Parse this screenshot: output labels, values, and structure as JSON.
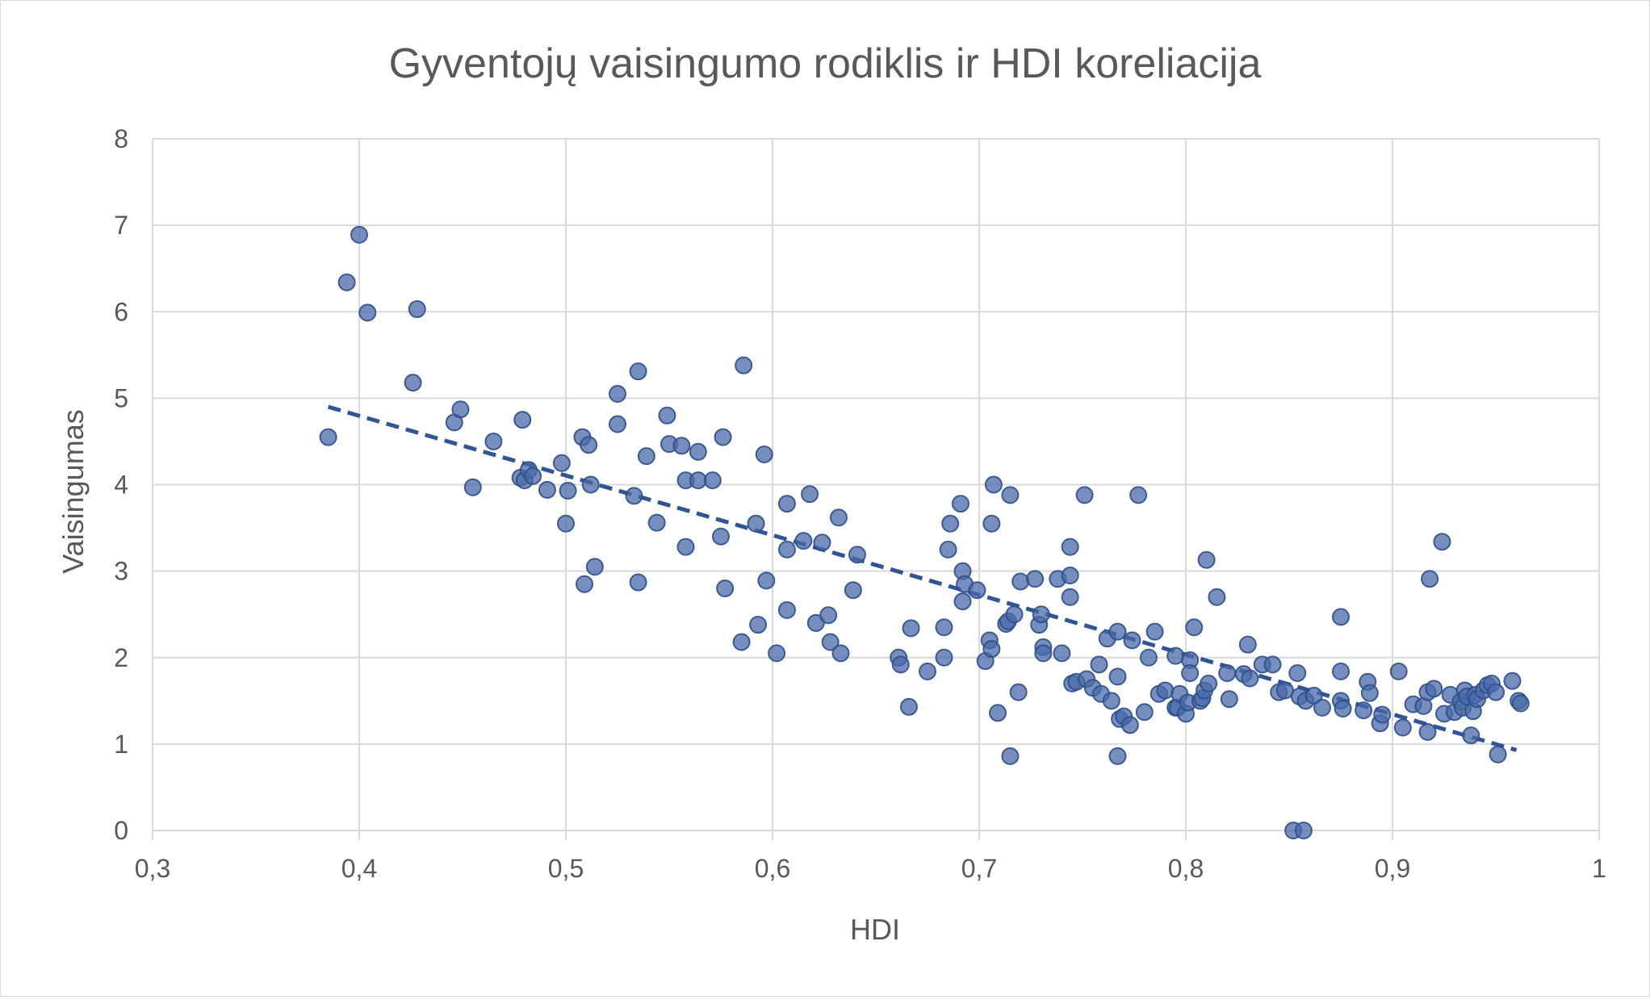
{
  "chart_data": {
    "type": "scatter",
    "title": "Gyventojų vaisingumo rodiklis ir HDI koreliacija",
    "xlabel": "HDI",
    "ylabel": "Vaisingumas",
    "xlim": [
      0.3,
      1.0
    ],
    "ylim": [
      0,
      8
    ],
    "x_ticks": [
      "0,3",
      "0,4",
      "0,5",
      "0,6",
      "0,7",
      "0,8",
      "0,9",
      "1"
    ],
    "y_ticks": [
      "0",
      "1",
      "2",
      "3",
      "4",
      "5",
      "6",
      "7",
      "8"
    ],
    "grid": true,
    "legend": "none",
    "marker_color": "#4a6aa8",
    "trendline": {
      "style": "dashed",
      "color": "#2f5597",
      "from": [
        0.385,
        4.9
      ],
      "to": [
        0.96,
        0.93
      ]
    },
    "points": [
      [
        0.385,
        4.55
      ],
      [
        0.394,
        6.34
      ],
      [
        0.4,
        6.89
      ],
      [
        0.404,
        5.99
      ],
      [
        0.426,
        5.18
      ],
      [
        0.428,
        6.03
      ],
      [
        0.446,
        4.72
      ],
      [
        0.449,
        4.87
      ],
      [
        0.455,
        3.97
      ],
      [
        0.465,
        4.5
      ],
      [
        0.478,
        4.08
      ],
      [
        0.479,
        4.75
      ],
      [
        0.48,
        4.05
      ],
      [
        0.482,
        4.17
      ],
      [
        0.484,
        4.1
      ],
      [
        0.491,
        3.94
      ],
      [
        0.498,
        4.25
      ],
      [
        0.5,
        3.55
      ],
      [
        0.501,
        3.93
      ],
      [
        0.508,
        4.55
      ],
      [
        0.509,
        2.85
      ],
      [
        0.511,
        4.46
      ],
      [
        0.512,
        4.0
      ],
      [
        0.514,
        3.05
      ],
      [
        0.525,
        5.05
      ],
      [
        0.525,
        4.7
      ],
      [
        0.533,
        3.87
      ],
      [
        0.535,
        5.31
      ],
      [
        0.535,
        2.87
      ],
      [
        0.539,
        4.33
      ],
      [
        0.544,
        3.56
      ],
      [
        0.549,
        4.8
      ],
      [
        0.55,
        4.47
      ],
      [
        0.556,
        4.45
      ],
      [
        0.558,
        4.05
      ],
      [
        0.558,
        3.28
      ],
      [
        0.564,
        4.38
      ],
      [
        0.564,
        4.05
      ],
      [
        0.571,
        4.05
      ],
      [
        0.575,
        3.4
      ],
      [
        0.576,
        4.55
      ],
      [
        0.577,
        2.8
      ],
      [
        0.585,
        2.18
      ],
      [
        0.586,
        5.38
      ],
      [
        0.592,
        3.55
      ],
      [
        0.593,
        2.38
      ],
      [
        0.596,
        4.35
      ],
      [
        0.597,
        2.89
      ],
      [
        0.602,
        2.05
      ],
      [
        0.607,
        3.78
      ],
      [
        0.607,
        3.25
      ],
      [
        0.607,
        2.55
      ],
      [
        0.615,
        3.35
      ],
      [
        0.618,
        3.89
      ],
      [
        0.621,
        2.4
      ],
      [
        0.624,
        3.33
      ],
      [
        0.627,
        2.49
      ],
      [
        0.628,
        2.18
      ],
      [
        0.632,
        3.62
      ],
      [
        0.633,
        2.05
      ],
      [
        0.639,
        2.78
      ],
      [
        0.641,
        3.19
      ],
      [
        0.661,
        2.0
      ],
      [
        0.662,
        1.92
      ],
      [
        0.666,
        1.43
      ],
      [
        0.667,
        2.34
      ],
      [
        0.675,
        1.84
      ],
      [
        0.683,
        2.35
      ],
      [
        0.683,
        2.0
      ],
      [
        0.685,
        3.25
      ],
      [
        0.686,
        3.55
      ],
      [
        0.691,
        3.78
      ],
      [
        0.692,
        3.0
      ],
      [
        0.692,
        2.65
      ],
      [
        0.693,
        2.85
      ],
      [
        0.699,
        2.78
      ],
      [
        0.703,
        1.96
      ],
      [
        0.705,
        2.2
      ],
      [
        0.706,
        3.55
      ],
      [
        0.706,
        2.1
      ],
      [
        0.707,
        4.0
      ],
      [
        0.709,
        1.36
      ],
      [
        0.713,
        2.39
      ],
      [
        0.714,
        2.42
      ],
      [
        0.715,
        3.88
      ],
      [
        0.715,
        0.86
      ],
      [
        0.717,
        2.5
      ],
      [
        0.719,
        1.6
      ],
      [
        0.72,
        2.88
      ],
      [
        0.727,
        2.91
      ],
      [
        0.729,
        2.38
      ],
      [
        0.73,
        2.5
      ],
      [
        0.731,
        2.12
      ],
      [
        0.731,
        2.05
      ],
      [
        0.738,
        2.91
      ],
      [
        0.74,
        2.05
      ],
      [
        0.744,
        2.95
      ],
      [
        0.744,
        3.28
      ],
      [
        0.744,
        2.7
      ],
      [
        0.745,
        1.7
      ],
      [
        0.747,
        1.72
      ],
      [
        0.751,
        3.88
      ],
      [
        0.752,
        1.75
      ],
      [
        0.755,
        1.65
      ],
      [
        0.758,
        1.92
      ],
      [
        0.759,
        1.58
      ],
      [
        0.762,
        2.22
      ],
      [
        0.764,
        1.5
      ],
      [
        0.767,
        2.3
      ],
      [
        0.767,
        1.78
      ],
      [
        0.767,
        0.86
      ],
      [
        0.768,
        1.29
      ],
      [
        0.77,
        1.32
      ],
      [
        0.773,
        1.22
      ],
      [
        0.774,
        2.2
      ],
      [
        0.777,
        3.88
      ],
      [
        0.78,
        1.37
      ],
      [
        0.782,
        2.0
      ],
      [
        0.785,
        2.3
      ],
      [
        0.787,
        1.58
      ],
      [
        0.79,
        1.62
      ],
      [
        0.795,
        2.02
      ],
      [
        0.795,
        1.42
      ],
      [
        0.796,
        1.42
      ],
      [
        0.797,
        1.58
      ],
      [
        0.8,
        1.35
      ],
      [
        0.801,
        1.48
      ],
      [
        0.802,
        1.97
      ],
      [
        0.802,
        1.82
      ],
      [
        0.804,
        2.35
      ],
      [
        0.807,
        1.5
      ],
      [
        0.808,
        1.53
      ],
      [
        0.809,
        1.62
      ],
      [
        0.81,
        3.13
      ],
      [
        0.811,
        1.7
      ],
      [
        0.815,
        2.7
      ],
      [
        0.82,
        1.82
      ],
      [
        0.821,
        1.52
      ],
      [
        0.828,
        1.81
      ],
      [
        0.83,
        2.15
      ],
      [
        0.831,
        1.76
      ],
      [
        0.837,
        1.92
      ],
      [
        0.842,
        1.92
      ],
      [
        0.845,
        1.6
      ],
      [
        0.848,
        1.62
      ],
      [
        0.852,
        0.0
      ],
      [
        0.854,
        1.82
      ],
      [
        0.855,
        1.55
      ],
      [
        0.857,
        0.0
      ],
      [
        0.858,
        1.5
      ],
      [
        0.862,
        1.56
      ],
      [
        0.866,
        1.42
      ],
      [
        0.875,
        2.47
      ],
      [
        0.875,
        1.84
      ],
      [
        0.875,
        1.5
      ],
      [
        0.876,
        1.41
      ],
      [
        0.886,
        1.39
      ],
      [
        0.888,
        1.72
      ],
      [
        0.889,
        1.59
      ],
      [
        0.894,
        1.24
      ],
      [
        0.895,
        1.34
      ],
      [
        0.903,
        1.84
      ],
      [
        0.905,
        1.19
      ],
      [
        0.91,
        1.46
      ],
      [
        0.915,
        1.44
      ],
      [
        0.917,
        1.14
      ],
      [
        0.917,
        1.6
      ],
      [
        0.918,
        2.91
      ],
      [
        0.92,
        1.64
      ],
      [
        0.924,
        3.34
      ],
      [
        0.925,
        1.35
      ],
      [
        0.928,
        1.57
      ],
      [
        0.93,
        1.37
      ],
      [
        0.933,
        1.49
      ],
      [
        0.934,
        1.42
      ],
      [
        0.935,
        1.62
      ],
      [
        0.936,
        1.55
      ],
      [
        0.938,
        1.1
      ],
      [
        0.939,
        1.38
      ],
      [
        0.94,
        1.57
      ],
      [
        0.941,
        1.52
      ],
      [
        0.944,
        1.62
      ],
      [
        0.946,
        1.68
      ],
      [
        0.948,
        1.7
      ],
      [
        0.95,
        1.6
      ],
      [
        0.951,
        0.88
      ],
      [
        0.958,
        1.73
      ],
      [
        0.961,
        1.5
      ],
      [
        0.962,
        1.47
      ]
    ]
  }
}
